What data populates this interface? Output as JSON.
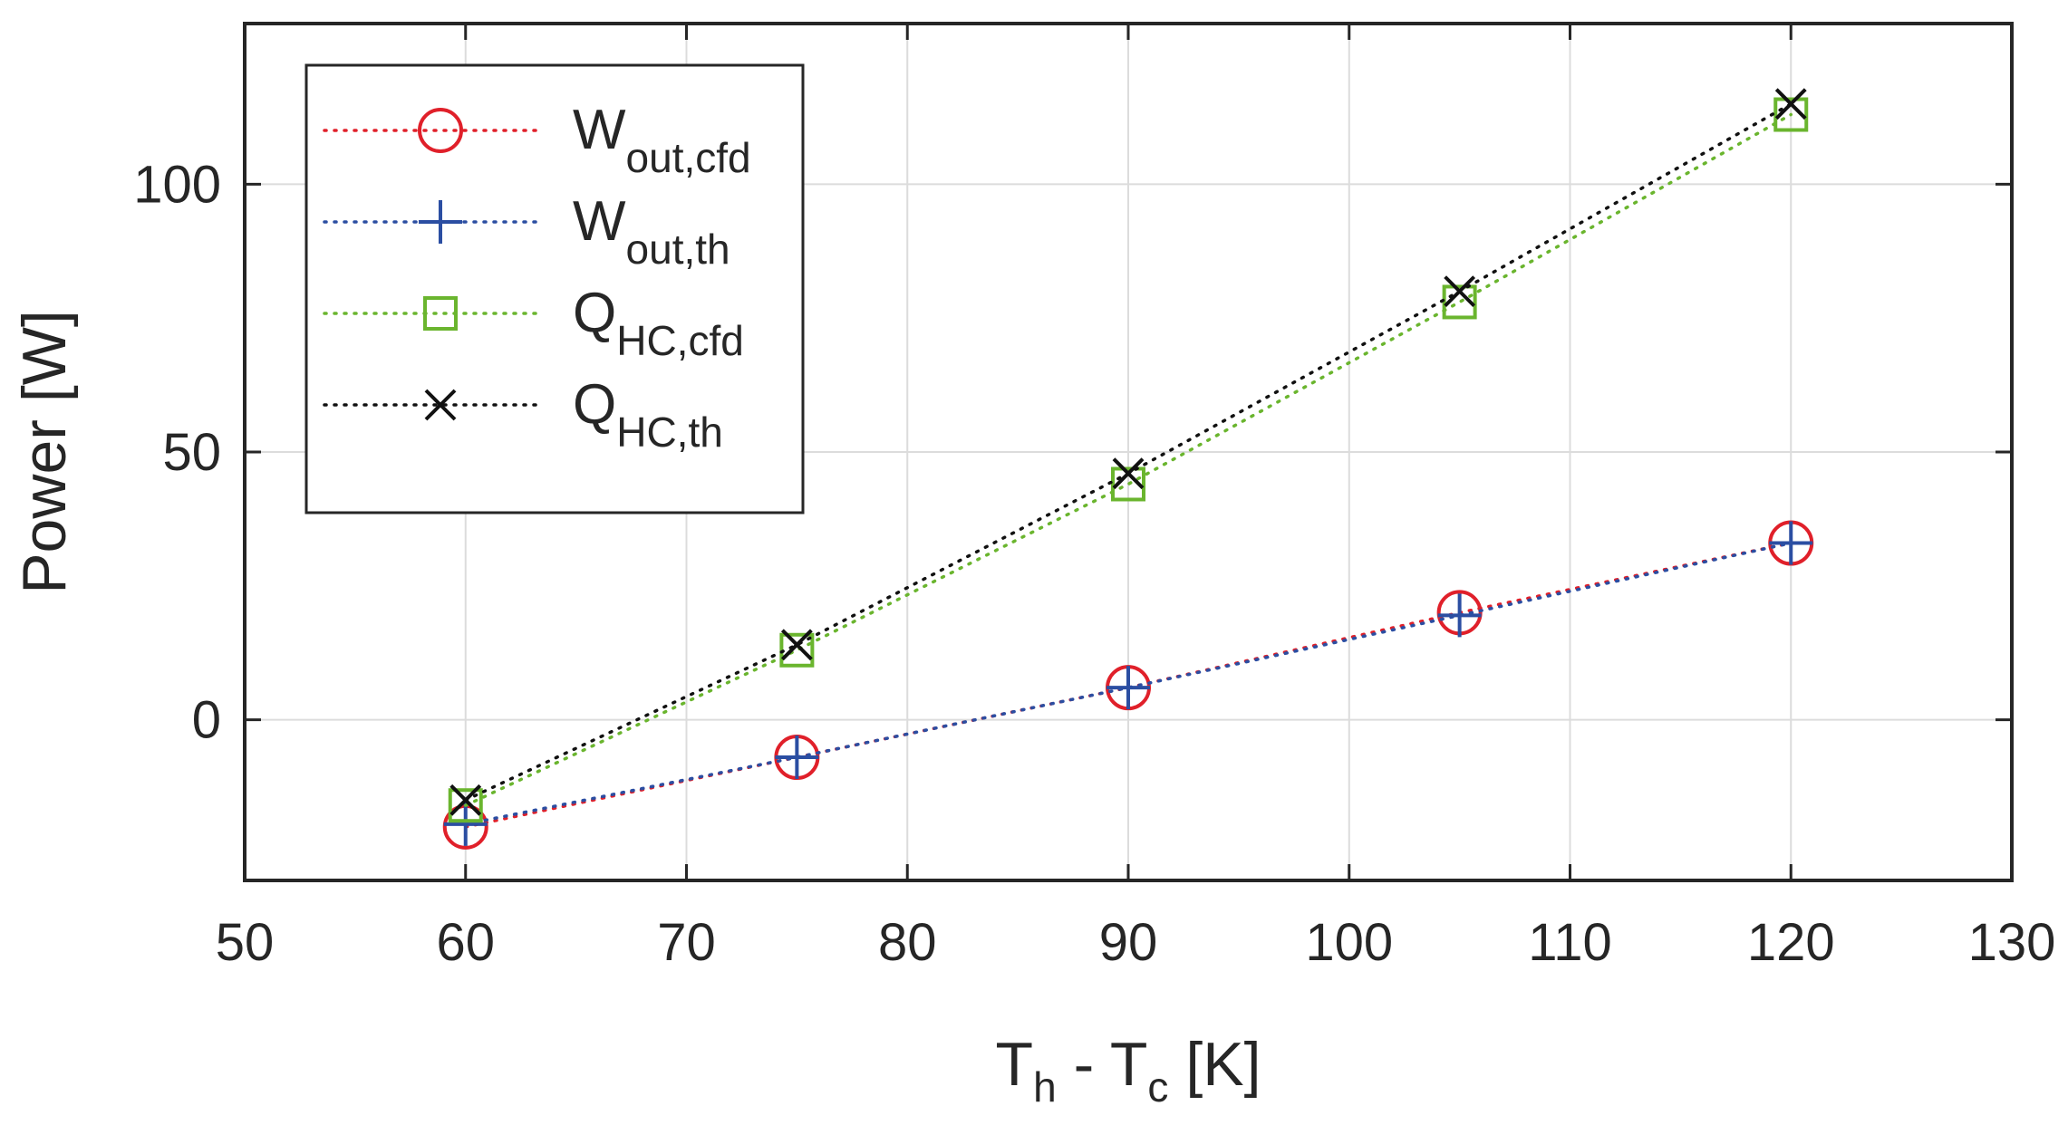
{
  "chart_data": {
    "type": "line",
    "xlabel": "T_h - T_c [K]",
    "xlabel_parts": {
      "a": "T",
      "a_sub": "h",
      "sep": " - ",
      "b": "T",
      "b_sub": "c",
      "unit": " [K]"
    },
    "ylabel": "Power [W]",
    "xlim": [
      50,
      130
    ],
    "ylim": [
      -30,
      130
    ],
    "xticks": [
      50,
      60,
      70,
      80,
      90,
      100,
      110,
      120,
      130
    ],
    "yticks": [
      0,
      50,
      100
    ],
    "grid": true,
    "legend_position": "top-left",
    "x": [
      60,
      75,
      90,
      105,
      120
    ],
    "series": [
      {
        "name": "W_out,cfd",
        "label_main": "W",
        "label_sub": "out,cfd",
        "marker": "circle",
        "color": "#e0202a",
        "values": [
          -20,
          -7,
          6,
          20,
          33
        ]
      },
      {
        "name": "W_out,th",
        "label_main": "W",
        "label_sub": "out,th",
        "marker": "plus",
        "color": "#2b4ea2",
        "values": [
          -19.5,
          -7,
          6,
          19.5,
          33
        ]
      },
      {
        "name": "Q_HC,cfd",
        "label_main": "Q",
        "label_sub": "HC,cfd",
        "marker": "square",
        "color": "#6ab52e",
        "values": [
          -16,
          13,
          44,
          78,
          113
        ]
      },
      {
        "name": "Q_HC,th",
        "label_main": "Q",
        "label_sub": "HC,th",
        "marker": "x",
        "color": "#111111",
        "values": [
          -15,
          14,
          46,
          80,
          115
        ]
      }
    ]
  }
}
